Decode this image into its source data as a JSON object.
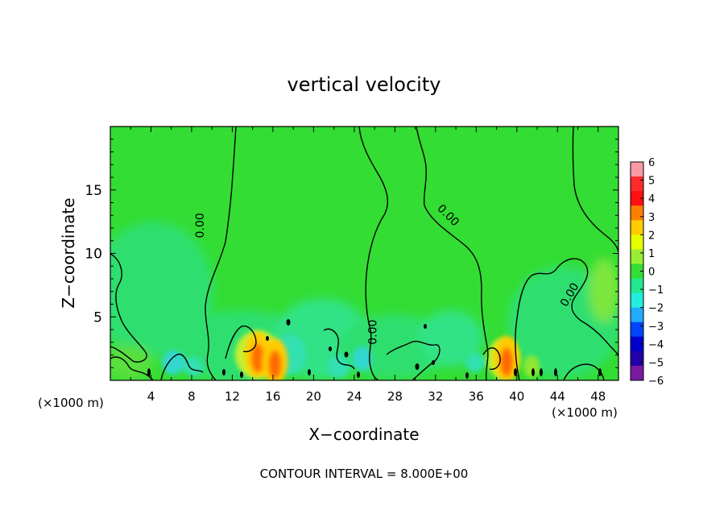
{
  "chart_data": {
    "type": "heatmap",
    "title": "vertical velocity",
    "xlabel": "X−coordinate",
    "ylabel": "Z−coordinate",
    "x_unit_left": "(×1000 m)",
    "x_unit_right": "(×1000 m)",
    "xlim": [
      0,
      50
    ],
    "ylim": [
      0,
      20
    ],
    "x_ticks": [
      4,
      8,
      12,
      16,
      20,
      24,
      28,
      32,
      36,
      40,
      44,
      48
    ],
    "y_ticks": [
      5,
      10,
      15
    ],
    "colorbar": {
      "ticks": [
        6,
        5,
        4,
        3,
        2,
        1,
        0,
        -1,
        -2,
        -3,
        -4,
        -5,
        -6
      ],
      "tick_labels": [
        "6",
        "5",
        "4",
        "3",
        "2",
        "1",
        "0",
        "−1",
        "−2",
        "−3",
        "−4",
        "−5",
        "−6"
      ],
      "colors": [
        "#f79aa3",
        "#ff2a2a",
        "#ff1010",
        "#ff8000",
        "#ffcc00",
        "#e6ff00",
        "#99ee33",
        "#33dd33",
        "#22e890",
        "#22eedd",
        "#22aaff",
        "#0044ff",
        "#0000cc",
        "#2200aa",
        "#7a1aa0"
      ]
    },
    "contour_labels": [
      {
        "text": "0.00",
        "x": 9.2,
        "y": 12.2
      },
      {
        "text": "0.00",
        "x": 33.0,
        "y": 12.8
      },
      {
        "text": "0.00",
        "x": 26.2,
        "y": 3.8
      },
      {
        "text": "0.00",
        "x": 45.5,
        "y": 6.6
      }
    ],
    "footer": "CONTOUR INTERVAL = 8.000E+00",
    "background_value": 0,
    "updraft_cores": [
      {
        "x": 14.5,
        "z": 2.0,
        "value": 3
      },
      {
        "x": 16.2,
        "z": 1.5,
        "value": 2
      },
      {
        "x": 39.0,
        "z": 1.7,
        "value": 3
      }
    ],
    "downdraft_regions": [
      {
        "x": 4,
        "z": 7,
        "value": -1
      },
      {
        "x": 17,
        "z": 2,
        "value": -2
      },
      {
        "x": 44,
        "z": 5,
        "value": -1
      }
    ]
  }
}
